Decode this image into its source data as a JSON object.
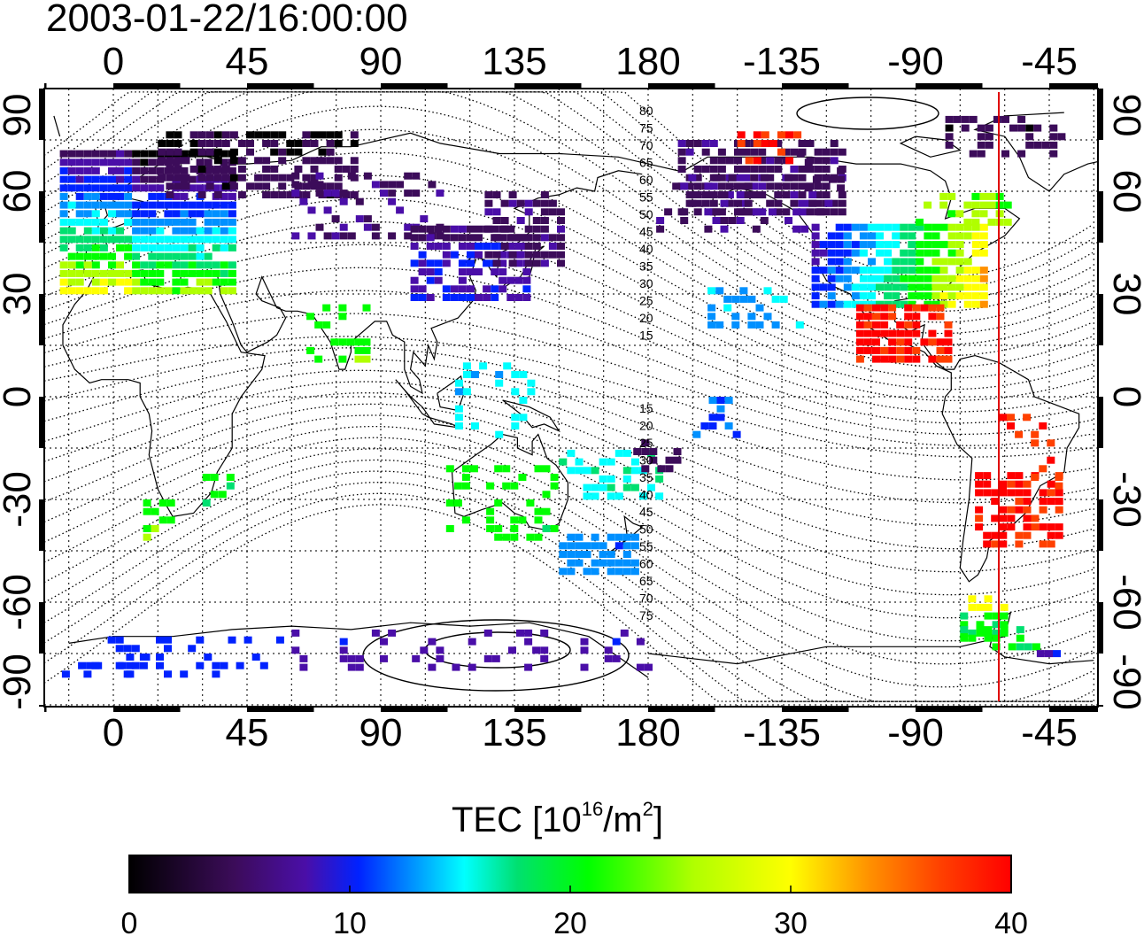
{
  "title": "2003-01-22/16:00:00",
  "top_ticks": [
    "0",
    "45",
    "90",
    "135",
    "180",
    "-135",
    "-90",
    "-45"
  ],
  "bottom_ticks": [
    "0",
    "45",
    "90",
    "135",
    "180",
    "-135",
    "-90",
    "-45"
  ],
  "lat_ticks": [
    "90",
    "60",
    "30",
    "0",
    "-30",
    "-60",
    "-90"
  ],
  "contour_labels_north": [
    "80",
    "75",
    "70",
    "65",
    "60",
    "55",
    "50",
    "45",
    "40",
    "35",
    "30",
    "25",
    "20",
    "15"
  ],
  "contour_labels_south": [
    "15",
    "20",
    "25",
    "30",
    "35",
    "40",
    "45",
    "50",
    "55",
    "60",
    "65",
    "70",
    "75"
  ],
  "colorbar": {
    "title_prefix": "TEC  [10",
    "title_sup1": "16",
    "title_mid": "/m",
    "title_sup2": "2",
    "title_suffix": "]",
    "ticks": [
      "0",
      "10",
      "20",
      "30",
      "40"
    ],
    "min": 0,
    "max": 40
  },
  "colors": {
    "colormap": [
      "#000000",
      "#3c0c5a",
      "#4a0ea8",
      "#0022ff",
      "#0090ff",
      "#00ffff",
      "#00e070",
      "#00ff00",
      "#b0ff00",
      "#ffff00",
      "#ff9000",
      "#ff4000",
      "#ff0000"
    ],
    "terminator": "#e00000"
  }
}
